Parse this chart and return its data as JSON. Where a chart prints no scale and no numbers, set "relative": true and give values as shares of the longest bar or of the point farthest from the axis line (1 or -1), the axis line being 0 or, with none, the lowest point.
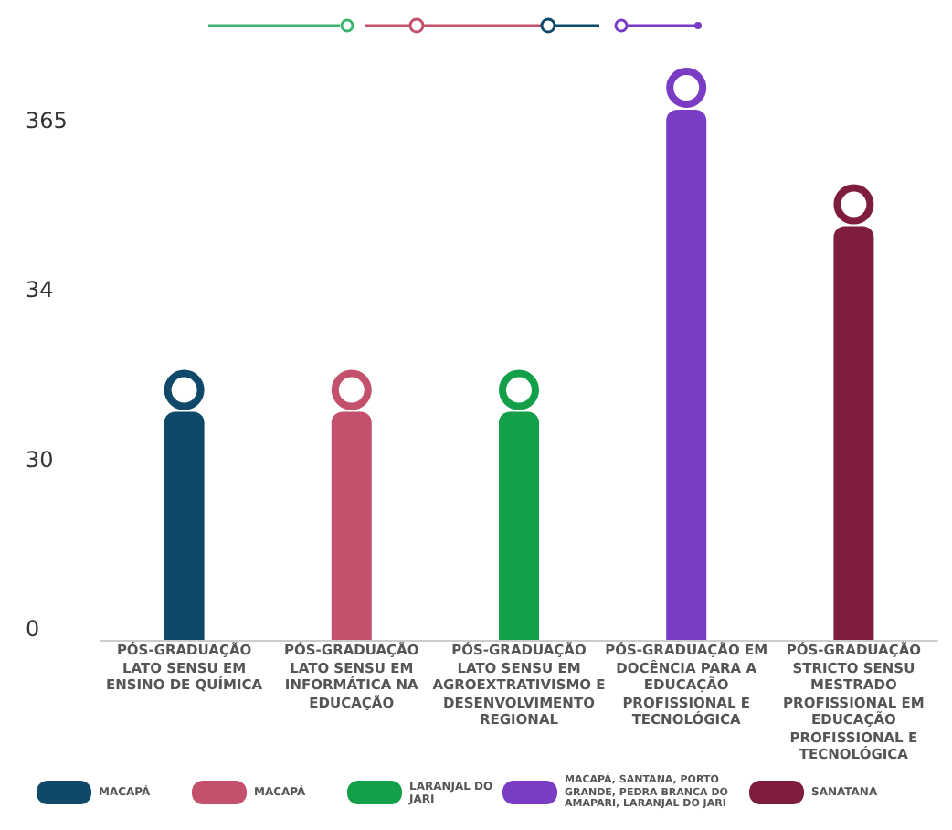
{
  "chart_data": {
    "type": "bar",
    "relative": true,
    "categories": [
      "PÓS-GRADUAÇÃO LATO SENSU EM ENSINO DE QUÍMICA",
      "PÓS-GRADUAÇÃO LATO SENSU EM INFORMÁTICA NA EDUCAÇÃO",
      "PÓS-GRADUAÇÃO LATO SENSU EM AGROEXTRATIVISMO E DESENVOLVIMENTO REGIONAL",
      "PÓS-GRADUAÇÃO EM DOCÊNCIA PARA A EDUCAÇÃO PROFISSIONAL E TECNOLÓGICA",
      "PÓS-GRADUAÇÃO STRICTO SENSU MESTRADO PROFISSIONAL EM EDUCAÇÃO PROFISSIONAL E TECNOLÓGICA"
    ],
    "values": [
      0.43,
      0.43,
      0.43,
      1,
      0.78
    ],
    "colors": [
      "#0f4868",
      "#c4516b",
      "#14a04a",
      "#7a3cc4",
      "#7e1d3d"
    ],
    "annotations": [
      "365",
      "34",
      "30",
      "0",
      "MACAPÁ",
      "MACAPÁ",
      "LARANJAL DO JARI",
      "MACAPÁ, SANTANA, PORTO GRANDE, PEDRA BRANCA DO AMAPARI, LARANJAL DO JARI",
      "SANATANA"
    ]
  }
}
